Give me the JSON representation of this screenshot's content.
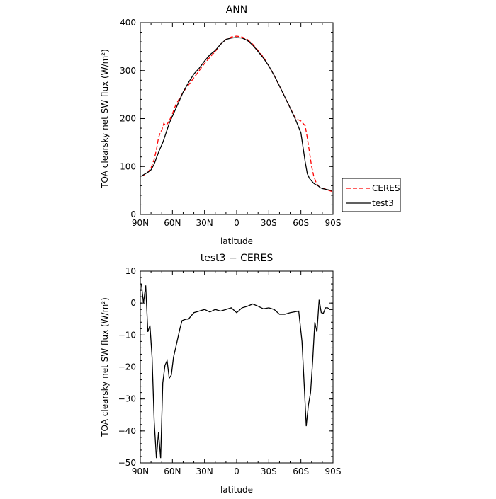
{
  "chart_data": [
    {
      "type": "line",
      "title": "ANN",
      "xlabel": "latitude",
      "ylabel": "TOA clearsky net SW flux (W/m²)",
      "xlim": [
        90,
        -90
      ],
      "ylim": [
        0,
        400
      ],
      "x_ticks": [
        90,
        60,
        30,
        0,
        -30,
        -60,
        -90
      ],
      "x_tick_labels": [
        "90N",
        "60N",
        "30N",
        "0",
        "30S",
        "60S",
        "90S"
      ],
      "y_ticks": [
        0,
        100,
        200,
        300,
        400
      ],
      "y_tick_labels": [
        "0",
        "100",
        "200",
        "300",
        "400"
      ],
      "grid": false,
      "legend": {
        "position": "right-outside",
        "entries": [
          "CERES",
          "test3"
        ]
      },
      "series": [
        {
          "name": "CERES",
          "color": "#ff0000",
          "dash": "dashed",
          "x": [
            89,
            86,
            83,
            80,
            77,
            75,
            73,
            71,
            70,
            69,
            68,
            67,
            66,
            63,
            60,
            57,
            54,
            50,
            45,
            40,
            35,
            30,
            25,
            20,
            15,
            10,
            5,
            0,
            -5,
            -10,
            -15,
            -20,
            -25,
            -30,
            -35,
            -40,
            -45,
            -50,
            -55,
            -60,
            -62,
            -64,
            -66,
            -68,
            -70,
            -72,
            -74,
            -76,
            -78,
            -80,
            -84,
            -89
          ],
          "y": [
            80,
            83,
            88,
            97,
            115,
            135,
            160,
            173,
            175,
            183,
            190,
            187,
            185,
            195,
            210,
            228,
            240,
            255,
            270,
            285,
            300,
            315,
            328,
            340,
            355,
            365,
            370,
            372,
            370,
            365,
            355,
            342,
            328,
            310,
            290,
            268,
            245,
            222,
            200,
            195,
            190,
            185,
            160,
            130,
            100,
            80,
            68,
            60,
            57,
            55,
            52,
            48
          ]
        },
        {
          "name": "test3",
          "color": "#000000",
          "dash": "solid",
          "x": [
            89,
            86,
            83,
            80,
            77,
            75,
            72,
            69,
            66,
            63,
            60,
            57,
            54,
            50,
            45,
            40,
            35,
            30,
            25,
            20,
            15,
            10,
            5,
            0,
            -5,
            -10,
            -15,
            -20,
            -25,
            -30,
            -35,
            -40,
            -45,
            -50,
            -55,
            -60,
            -62,
            -64,
            -66,
            -68,
            -70,
            -72,
            -74,
            -76,
            -78,
            -80,
            -84,
            -89
          ],
          "y": [
            80,
            84,
            88,
            93,
            105,
            118,
            135,
            150,
            170,
            190,
            205,
            220,
            235,
            255,
            275,
            293,
            305,
            320,
            333,
            342,
            355,
            365,
            368,
            369,
            368,
            363,
            353,
            340,
            326,
            310,
            290,
            268,
            245,
            222,
            198,
            170,
            140,
            110,
            85,
            75,
            70,
            65,
            62,
            60,
            56,
            54,
            52,
            50
          ]
        }
      ]
    },
    {
      "type": "line",
      "title": "test3 − CERES",
      "xlabel": "latitude",
      "ylabel": "TOA clearsky net SW flux (W/m²)",
      "xlim": [
        90,
        -90
      ],
      "ylim": [
        -50,
        10
      ],
      "x_ticks": [
        90,
        60,
        30,
        0,
        -30,
        -60,
        -90
      ],
      "x_tick_labels": [
        "90N",
        "60N",
        "30N",
        "0",
        "30S",
        "60S",
        "90S"
      ],
      "y_ticks": [
        -50,
        -40,
        -30,
        -20,
        -10,
        0,
        10
      ],
      "y_tick_labels": [
        "−50",
        "−40",
        "−30",
        "−20",
        "−10",
        "0",
        "10"
      ],
      "grid": false,
      "series": [
        {
          "color": "#000000",
          "dash": "solid",
          "x": [
            89,
            87,
            85,
            83,
            81,
            79,
            77,
            75,
            73,
            71,
            69,
            67,
            65,
            63,
            61,
            59,
            57,
            55,
            53,
            51,
            49,
            47,
            45,
            40,
            35,
            30,
            25,
            20,
            15,
            10,
            5,
            0,
            -5,
            -10,
            -15,
            -20,
            -25,
            -30,
            -35,
            -40,
            -45,
            -50,
            -55,
            -58,
            -61,
            -63,
            -65,
            -67,
            -69,
            -71,
            -73,
            -75,
            -77,
            -79,
            -81,
            -83,
            -85,
            -87,
            -89
          ],
          "y": [
            6,
            0,
            5.5,
            -9,
            -7,
            -17,
            -37,
            -48.5,
            -40.5,
            -48.5,
            -25,
            -19.5,
            -18,
            -23.5,
            -22.5,
            -17,
            -14,
            -11,
            -8,
            -5.5,
            -5.2,
            -5,
            -5,
            -3,
            -2.5,
            -2,
            -2.8,
            -2,
            -2.5,
            -2,
            -1.5,
            -3,
            -1.5,
            -1,
            -0.3,
            -1,
            -1.8,
            -1.5,
            -2,
            -3.5,
            -3.5,
            -3,
            -2.7,
            -2.5,
            -12,
            -25,
            -38.5,
            -32,
            -28,
            -18,
            -6,
            -9,
            1,
            -3,
            -3.2,
            -1.5,
            -1.5,
            -2,
            -2
          ]
        }
      ]
    }
  ]
}
